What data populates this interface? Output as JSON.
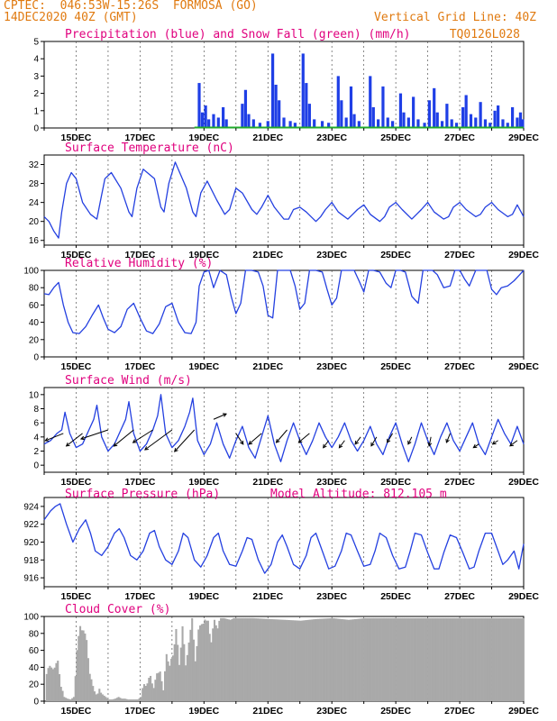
{
  "header": {
    "line1": "CPTEC:  046:53W-15:26S  FORMOSA (GO)",
    "line2": "14DEC2020 40Z (GMT)",
    "grid_note": "Vertical Grid Line: 40Z",
    "code": "TQ0126L028"
  },
  "colors": {
    "header": "#e07a10",
    "title": "#e0007e",
    "precip": "#1f3fe6",
    "snow": "#1faa2a",
    "line": "#2440e0",
    "cloud": "#a9a9a9",
    "arrow": "#000000"
  },
  "chart_data": [
    {
      "type": "bar",
      "title": "Precipitation (blue) and Snow Fall (green) (mm/h)",
      "ylim": [
        0,
        5
      ],
      "yticks": [
        0,
        1,
        2,
        3,
        4,
        5
      ],
      "xticklabels": [
        "15DEC",
        "17DEC",
        "19DEC",
        "21DEC",
        "23DEC",
        "25DEC",
        "27DEC",
        "29DEC"
      ],
      "x_unit": "days since 14DEC2020 00Z",
      "series": [
        {
          "name": "Precipitation",
          "points": [
            [
              4.85,
              2.6
            ],
            [
              4.95,
              0.9
            ],
            [
              5.05,
              1.3
            ],
            [
              5.15,
              0.5
            ],
            [
              5.3,
              0.8
            ],
            [
              5.45,
              0.6
            ],
            [
              5.6,
              1.2
            ],
            [
              5.7,
              0.5
            ],
            [
              6.2,
              1.4
            ],
            [
              6.3,
              2.2
            ],
            [
              6.4,
              0.8
            ],
            [
              6.55,
              0.5
            ],
            [
              6.75,
              0.3
            ],
            [
              7.0,
              0.4
            ],
            [
              7.15,
              4.3
            ],
            [
              7.25,
              2.5
            ],
            [
              7.35,
              1.6
            ],
            [
              7.5,
              0.6
            ],
            [
              7.7,
              0.4
            ],
            [
              7.85,
              0.3
            ],
            [
              8.1,
              4.3
            ],
            [
              8.2,
              2.6
            ],
            [
              8.3,
              1.4
            ],
            [
              8.45,
              0.5
            ],
            [
              8.7,
              0.4
            ],
            [
              8.9,
              0.3
            ],
            [
              9.2,
              3.0
            ],
            [
              9.3,
              1.6
            ],
            [
              9.45,
              0.6
            ],
            [
              9.6,
              2.4
            ],
            [
              9.7,
              0.8
            ],
            [
              9.85,
              0.4
            ],
            [
              10.2,
              3.0
            ],
            [
              10.3,
              1.2
            ],
            [
              10.45,
              0.5
            ],
            [
              10.6,
              2.4
            ],
            [
              10.75,
              0.6
            ],
            [
              10.9,
              0.4
            ],
            [
              11.15,
              2.0
            ],
            [
              11.25,
              0.9
            ],
            [
              11.4,
              0.6
            ],
            [
              11.55,
              1.8
            ],
            [
              11.7,
              0.5
            ],
            [
              11.9,
              0.3
            ],
            [
              12.05,
              1.6
            ],
            [
              12.2,
              2.3
            ],
            [
              12.3,
              0.9
            ],
            [
              12.45,
              0.4
            ],
            [
              12.6,
              1.4
            ],
            [
              12.75,
              0.5
            ],
            [
              12.9,
              0.3
            ],
            [
              13.1,
              1.2
            ],
            [
              13.2,
              1.9
            ],
            [
              13.35,
              0.8
            ],
            [
              13.5,
              0.6
            ],
            [
              13.65,
              1.5
            ],
            [
              13.8,
              0.5
            ],
            [
              13.95,
              0.3
            ],
            [
              14.1,
              1.0
            ],
            [
              14.2,
              1.3
            ],
            [
              14.35,
              0.5
            ],
            [
              14.5,
              0.3
            ],
            [
              14.65,
              1.2
            ],
            [
              14.8,
              0.6
            ],
            [
              14.9,
              0.9
            ],
            [
              14.97,
              0.5
            ]
          ]
        },
        {
          "name": "Snow Fall",
          "points": []
        }
      ]
    },
    {
      "type": "line",
      "title": "Surface Temperature (nC)",
      "ylim": [
        15,
        34
      ],
      "yticks": [
        16,
        20,
        24,
        28,
        32
      ],
      "xticklabels": [
        "15DEC",
        "17DEC",
        "19DEC",
        "21DEC",
        "23DEC",
        "25DEC",
        "27DEC",
        "29DEC"
      ],
      "x": [
        0.0,
        0.15,
        0.3,
        0.45,
        0.55,
        0.7,
        0.85,
        1.0,
        1.2,
        1.45,
        1.65,
        1.75,
        1.9,
        2.1,
        2.4,
        2.65,
        2.75,
        2.9,
        3.1,
        3.45,
        3.65,
        3.75,
        3.9,
        4.1,
        4.45,
        4.65,
        4.75,
        4.9,
        5.1,
        5.4,
        5.65,
        5.8,
        6.0,
        6.2,
        6.5,
        6.65,
        6.8,
        7.0,
        7.2,
        7.5,
        7.65,
        7.8,
        8.0,
        8.2,
        8.5,
        8.65,
        8.8,
        9.0,
        9.2,
        9.5,
        9.65,
        9.8,
        10.0,
        10.2,
        10.5,
        10.65,
        10.8,
        11.0,
        11.2,
        11.5,
        11.65,
        11.8,
        12.0,
        12.2,
        12.5,
        12.65,
        12.8,
        13.0,
        13.2,
        13.5,
        13.65,
        13.8,
        14.0,
        14.2,
        14.5,
        14.65,
        14.8,
        15.0
      ],
      "y": [
        21.0,
        20.0,
        18.0,
        16.5,
        22.0,
        28.0,
        30.3,
        29.0,
        24.0,
        21.5,
        20.5,
        24.0,
        29.0,
        30.3,
        27.0,
        22.0,
        21.0,
        27.0,
        31.0,
        29.0,
        23.0,
        22.0,
        28.0,
        32.5,
        27.0,
        22.0,
        21.0,
        26.0,
        28.5,
        24.5,
        21.5,
        22.5,
        27.0,
        26.0,
        22.5,
        21.5,
        23.0,
        25.5,
        23.0,
        20.5,
        20.5,
        22.5,
        23.0,
        22.0,
        20.0,
        21.0,
        22.5,
        24.0,
        22.0,
        20.5,
        21.5,
        22.5,
        23.5,
        21.5,
        20.0,
        21.0,
        23.0,
        24.0,
        22.5,
        20.5,
        21.5,
        22.5,
        24.0,
        22.0,
        20.5,
        21.0,
        23.0,
        24.0,
        22.5,
        21.0,
        21.5,
        23.0,
        24.0,
        22.5,
        21.0,
        21.5,
        23.5,
        21.0
      ],
      "series": [
        {
          "name": "Surface Temperature"
        }
      ]
    },
    {
      "type": "line",
      "title": "Relative Humidity (%)",
      "ylim": [
        0,
        100
      ],
      "yticks": [
        0,
        20,
        40,
        60,
        80,
        100
      ],
      "xticklabels": [
        "15DEC",
        "17DEC",
        "19DEC",
        "21DEC",
        "23DEC",
        "25DEC",
        "27DEC",
        "29DEC"
      ],
      "x": [
        0.0,
        0.15,
        0.3,
        0.45,
        0.6,
        0.75,
        0.9,
        1.1,
        1.3,
        1.5,
        1.7,
        1.85,
        2.0,
        2.2,
        2.4,
        2.6,
        2.8,
        3.0,
        3.2,
        3.4,
        3.6,
        3.8,
        4.0,
        4.2,
        4.4,
        4.6,
        4.75,
        4.85,
        5.0,
        5.15,
        5.3,
        5.5,
        5.7,
        5.85,
        6.0,
        6.15,
        6.3,
        6.5,
        6.7,
        6.85,
        7.0,
        7.15,
        7.3,
        7.5,
        7.7,
        7.85,
        8.0,
        8.15,
        8.3,
        8.5,
        8.7,
        8.85,
        9.0,
        9.15,
        9.3,
        9.5,
        9.7,
        9.85,
        10.0,
        10.15,
        10.3,
        10.5,
        10.7,
        10.85,
        11.0,
        11.15,
        11.3,
        11.5,
        11.7,
        11.85,
        12.0,
        12.15,
        12.3,
        12.5,
        12.7,
        12.85,
        13.0,
        13.15,
        13.3,
        13.5,
        13.7,
        13.85,
        14.0,
        14.15,
        14.3,
        14.5,
        14.7,
        14.85,
        15.0
      ],
      "y": [
        73,
        72,
        80,
        86,
        60,
        40,
        28,
        27,
        35,
        48,
        60,
        45,
        32,
        28,
        35,
        55,
        62,
        45,
        30,
        27,
        38,
        58,
        62,
        40,
        28,
        27,
        40,
        82,
        98,
        100,
        80,
        100,
        95,
        70,
        50,
        62,
        100,
        100,
        98,
        82,
        48,
        45,
        100,
        100,
        100,
        82,
        55,
        62,
        100,
        100,
        98,
        78,
        60,
        68,
        100,
        100,
        100,
        88,
        75,
        100,
        100,
        98,
        85,
        80,
        100,
        100,
        98,
        70,
        62,
        100,
        100,
        100,
        95,
        80,
        82,
        100,
        100,
        90,
        82,
        100,
        100,
        100,
        78,
        72,
        80,
        82,
        88,
        94,
        100
      ],
      "series": [
        {
          "name": "Relative Humidity"
        }
      ]
    },
    {
      "type": "line",
      "title": "Surface Wind (m/s)",
      "ylim": [
        -1,
        11
      ],
      "yticks": [
        0,
        2,
        4,
        6,
        8,
        10
      ],
      "xticklabels": [
        "15DEC",
        "17DEC",
        "19DEC",
        "21DEC",
        "23DEC",
        "25DEC",
        "27DEC",
        "29DEC"
      ],
      "x": [
        0.0,
        0.2,
        0.4,
        0.55,
        0.65,
        0.8,
        1.0,
        1.2,
        1.4,
        1.55,
        1.65,
        1.8,
        2.0,
        2.2,
        2.4,
        2.55,
        2.65,
        2.8,
        3.0,
        3.2,
        3.4,
        3.55,
        3.65,
        3.8,
        4.0,
        4.2,
        4.4,
        4.55,
        4.65,
        4.8,
        5.0,
        5.2,
        5.4,
        5.6,
        5.8,
        6.0,
        6.2,
        6.4,
        6.6,
        6.8,
        7.0,
        7.2,
        7.4,
        7.6,
        7.8,
        8.0,
        8.2,
        8.4,
        8.6,
        8.8,
        9.0,
        9.2,
        9.4,
        9.6,
        9.8,
        10.0,
        10.2,
        10.4,
        10.6,
        10.8,
        11.0,
        11.2,
        11.4,
        11.6,
        11.8,
        12.0,
        12.2,
        12.4,
        12.6,
        12.8,
        13.0,
        13.2,
        13.4,
        13.6,
        13.8,
        14.0,
        14.2,
        14.4,
        14.6,
        14.8,
        15.0
      ],
      "y": [
        3.0,
        3.5,
        4.5,
        5.0,
        7.5,
        4.5,
        2.5,
        3.0,
        5.0,
        6.5,
        8.5,
        4.0,
        2.0,
        3.0,
        5.0,
        6.5,
        9.0,
        4.5,
        2.0,
        3.0,
        5.0,
        7.0,
        10.0,
        4.5,
        2.5,
        3.5,
        5.5,
        7.5,
        9.5,
        3.5,
        1.5,
        3.0,
        6.0,
        3.0,
        1.0,
        3.5,
        5.5,
        2.5,
        1.0,
        4.0,
        7.0,
        3.0,
        0.5,
        3.5,
        6.0,
        3.5,
        1.5,
        3.5,
        6.0,
        4.0,
        2.5,
        4.0,
        6.0,
        3.5,
        2.0,
        3.5,
        5.5,
        3.0,
        1.5,
        4.0,
        6.0,
        3.0,
        0.5,
        3.0,
        6.0,
        3.5,
        1.5,
        4.0,
        6.0,
        3.5,
        2.0,
        4.0,
        6.0,
        3.0,
        1.5,
        4.0,
        6.5,
        4.5,
        3.0,
        5.5,
        3.0
      ],
      "series": [
        {
          "name": "Surface Wind"
        }
      ]
    },
    {
      "type": "line",
      "title": "Surface Pressure (hPa)",
      "annotation": "Model Altitude: 812.105 m",
      "ylim": [
        915,
        925
      ],
      "yticks": [
        916,
        918,
        920,
        922,
        924
      ],
      "xticklabels": [
        "15DEC",
        "17DEC",
        "19DEC",
        "21DEC",
        "23DEC",
        "25DEC",
        "27DEC",
        "29DEC"
      ],
      "x": [
        0.0,
        0.2,
        0.35,
        0.5,
        0.7,
        0.9,
        1.1,
        1.3,
        1.45,
        1.6,
        1.8,
        2.0,
        2.2,
        2.35,
        2.5,
        2.7,
        2.9,
        3.1,
        3.3,
        3.45,
        3.6,
        3.8,
        4.0,
        4.2,
        4.35,
        4.5,
        4.7,
        4.9,
        5.1,
        5.3,
        5.45,
        5.6,
        5.8,
        6.0,
        6.2,
        6.35,
        6.5,
        6.7,
        6.9,
        7.1,
        7.3,
        7.45,
        7.6,
        7.8,
        8.0,
        8.2,
        8.35,
        8.5,
        8.7,
        8.9,
        9.1,
        9.3,
        9.45,
        9.6,
        9.8,
        10.0,
        10.2,
        10.35,
        10.5,
        10.7,
        10.9,
        11.1,
        11.3,
        11.45,
        11.6,
        11.8,
        12.0,
        12.2,
        12.35,
        12.5,
        12.7,
        12.9,
        13.1,
        13.3,
        13.45,
        13.6,
        13.8,
        14.0,
        14.2,
        14.35,
        14.5,
        14.7,
        14.85,
        15.0
      ],
      "y": [
        922.5,
        923.5,
        924.0,
        924.3,
        922.0,
        920.0,
        921.5,
        922.5,
        921.0,
        919.0,
        918.5,
        919.5,
        921.0,
        921.5,
        920.5,
        918.5,
        918.0,
        919.0,
        921.0,
        921.3,
        919.5,
        918.0,
        917.5,
        919.0,
        921.0,
        920.5,
        918.0,
        917.2,
        918.5,
        920.5,
        921.0,
        919.0,
        917.5,
        917.3,
        919.0,
        920.5,
        920.3,
        918.0,
        916.5,
        917.5,
        920.0,
        920.8,
        919.5,
        917.5,
        917.0,
        918.5,
        920.5,
        921.0,
        919.0,
        917.0,
        917.3,
        919.0,
        921.0,
        920.8,
        919.0,
        917.3,
        917.5,
        919.0,
        921.0,
        920.5,
        918.5,
        917.0,
        917.2,
        919.0,
        921.0,
        920.8,
        918.8,
        917.0,
        917.0,
        918.8,
        920.8,
        920.5,
        918.8,
        917.0,
        917.2,
        919.0,
        921.0,
        921.0,
        919.0,
        917.5,
        918.0,
        919.0,
        917.0,
        919.8
      ],
      "series": [
        {
          "name": "Surface Pressure"
        }
      ]
    },
    {
      "type": "area",
      "title": "Cloud Cover (%)",
      "ylim": [
        0,
        100
      ],
      "yticks": [
        0,
        20,
        40,
        60,
        80,
        100
      ],
      "xticklabels": [
        "15DEC",
        "17DEC",
        "19DEC",
        "21DEC",
        "23DEC",
        "25DEC",
        "27DEC",
        "29DEC"
      ],
      "x": [
        0.0,
        0.05,
        0.1,
        0.2,
        0.3,
        0.4,
        0.5,
        0.6,
        0.7,
        0.8,
        0.9,
        1.0,
        1.1,
        1.2,
        1.3,
        1.4,
        1.5,
        1.6,
        1.7,
        1.8,
        1.9,
        2.0,
        2.1,
        2.2,
        2.3,
        2.4,
        2.5,
        2.6,
        2.7,
        2.8,
        2.9,
        3.0,
        3.1,
        3.2,
        3.3,
        3.4,
        3.5,
        3.6,
        3.7,
        3.8,
        3.9,
        4.0,
        4.1,
        4.2,
        4.3,
        4.4,
        4.5,
        4.6,
        4.7,
        4.8,
        4.9,
        5.0,
        5.1,
        5.2,
        5.3,
        5.4,
        5.5,
        5.6,
        5.7,
        5.8,
        5.9,
        6.0,
        6.5,
        7.0,
        7.5,
        8.0,
        8.5,
        9.0,
        9.5,
        10.0,
        15.0
      ],
      "y": [
        0,
        35,
        40,
        38,
        42,
        45,
        20,
        5,
        3,
        2,
        5,
        60,
        88,
        85,
        70,
        35,
        15,
        8,
        12,
        8,
        5,
        2,
        2,
        3,
        5,
        3,
        3,
        2,
        2,
        2,
        2,
        5,
        20,
        22,
        28,
        18,
        30,
        38,
        10,
        58,
        40,
        55,
        85,
        42,
        90,
        40,
        72,
        95,
        50,
        82,
        93,
        95,
        95,
        70,
        96,
        88,
        98,
        98,
        97,
        96,
        98,
        98,
        98,
        97,
        96,
        95,
        97,
        98,
        96,
        98,
        98
      ],
      "series": [
        {
          "name": "Cloud Cover"
        }
      ]
    }
  ]
}
